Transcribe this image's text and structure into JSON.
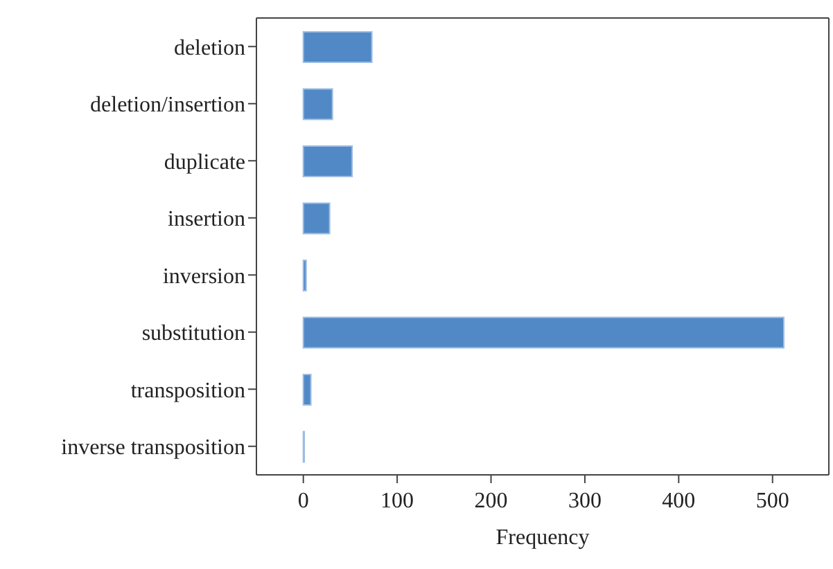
{
  "chart_data": {
    "type": "bar",
    "orientation": "horizontal",
    "xlabel": "Frequency",
    "categories": [
      "deletion",
      "deletion/insertion",
      "duplicate",
      "insertion",
      "inversion",
      "substitution",
      "transposition",
      "inverse transposition"
    ],
    "values": [
      73,
      31,
      52,
      28,
      3,
      512,
      8,
      1
    ],
    "color": "#5089c6",
    "xlim": [
      -50,
      560
    ],
    "xticks": [
      0,
      100,
      200,
      300,
      400,
      500
    ],
    "grid": false,
    "legend": false
  }
}
